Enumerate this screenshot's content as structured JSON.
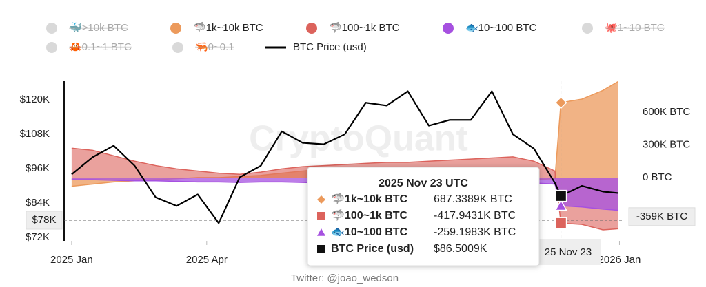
{
  "chart_data": {
    "type": "combo",
    "watermark": "CryptoQuant",
    "footer": "Twitter: @joao_wedson",
    "x": [
      "2025-01-01",
      "2025-01-15",
      "2025-01-29",
      "2025-02-12",
      "2025-02-26",
      "2025-03-12",
      "2025-03-26",
      "2025-04-09",
      "2025-04-23",
      "2025-05-07",
      "2025-05-21",
      "2025-06-04",
      "2025-06-18",
      "2025-07-02",
      "2025-07-16",
      "2025-07-30",
      "2025-08-13",
      "2025-08-27",
      "2025-09-10",
      "2025-09-24",
      "2025-10-08",
      "2025-10-22",
      "2025-11-05",
      "2025-11-19",
      "2025-11-23",
      "2025-12-07",
      "2025-12-21",
      "2025-12-31"
    ],
    "xlim": [
      "2024-12-27",
      "2026-01-04"
    ],
    "xticks": [
      {
        "value": "2025-01-01",
        "label": "2025 Jan"
      },
      {
        "value": "2025-04-01",
        "label": "2025 Apr"
      },
      {
        "value": "2026-01-01",
        "label": "2026 Jan"
      }
    ],
    "ylim": [
      70800,
      126500
    ],
    "yticks": [
      {
        "value": 72000,
        "label": "$72K"
      },
      {
        "value": 84000,
        "label": "$84K"
      },
      {
        "value": 96000,
        "label": "$96K"
      },
      {
        "value": 108000,
        "label": "$108K"
      },
      {
        "value": 120000,
        "label": "$120K"
      }
    ],
    "y2lim": [
      -581000,
      884000
    ],
    "y2ticks": [
      {
        "value": 0,
        "label": "0 BTC"
      },
      {
        "value": 300000,
        "label": "300K BTC"
      },
      {
        "value": 600000,
        "label": "600K BTC"
      }
    ],
    "series": [
      {
        "name": "🐳>10k BTC",
        "color": "#d9d9d9",
        "hidden": true
      },
      {
        "name": "🦈1k~10k BTC",
        "color": "#ec9a5c",
        "type": "area",
        "axis": "y2",
        "values": [
          -80000,
          -60000,
          -40000,
          -30000,
          -20000,
          -10000,
          0,
          0,
          10000,
          20000,
          40000,
          60000,
          80000,
          90000,
          60000,
          30000,
          20000,
          10000,
          0,
          -10000,
          -20000,
          -30000,
          -20000,
          -10000,
          687338.9,
          720000,
          800000,
          880000
        ],
        "value_labels": [
          null,
          null,
          null,
          null,
          null,
          null,
          null,
          null,
          null,
          null,
          null,
          null,
          null,
          null,
          null,
          null,
          null,
          null,
          null,
          null,
          null,
          null,
          null,
          null,
          "687.3389K BTC",
          null,
          null,
          null
        ]
      },
      {
        "name": "🦈100~1k BTC",
        "color": "#dc635c",
        "type": "area",
        "axis": "y2",
        "values": [
          270000,
          250000,
          200000,
          150000,
          110000,
          80000,
          60000,
          40000,
          30000,
          50000,
          80000,
          100000,
          110000,
          120000,
          130000,
          140000,
          140000,
          150000,
          160000,
          170000,
          180000,
          190000,
          150000,
          60000,
          -417943.1,
          -430000,
          -480000,
          -470000
        ],
        "value_labels": [
          null,
          null,
          null,
          null,
          null,
          null,
          null,
          null,
          null,
          null,
          null,
          null,
          null,
          null,
          null,
          null,
          null,
          null,
          null,
          null,
          null,
          null,
          null,
          null,
          "-417.9431K BTC",
          null,
          null,
          null
        ]
      },
      {
        "name": "🐟10~100 BTC",
        "color": "#a651e0",
        "type": "area",
        "axis": "y2",
        "values": [
          -20000,
          -20000,
          -25000,
          -30000,
          -30000,
          -35000,
          -40000,
          -40000,
          -45000,
          -40000,
          -40000,
          -45000,
          -50000,
          -50000,
          -55000,
          -55000,
          -60000,
          -60000,
          -60000,
          -60000,
          -55000,
          -50000,
          -50000,
          -60000,
          -259198.3,
          -270000,
          -290000,
          -300000
        ],
        "value_labels": [
          null,
          null,
          null,
          null,
          null,
          null,
          null,
          null,
          null,
          null,
          null,
          null,
          null,
          null,
          null,
          null,
          null,
          null,
          null,
          null,
          null,
          null,
          null,
          null,
          "-259.1983K BTC",
          null,
          null,
          null
        ]
      },
      {
        "name": "🐙1~10 BTC",
        "color": "#d9d9d9",
        "hidden": true
      },
      {
        "name": "🦀0.1~1 BTC",
        "color": "#d9d9d9",
        "hidden": true
      },
      {
        "name": "🦐0~0.1",
        "color": "#d9d9d9",
        "hidden": true
      },
      {
        "name": "BTC Price (usd)",
        "color": "#000000",
        "type": "line",
        "values": [
          94000,
          100000,
          104000,
          97000,
          86000,
          83000,
          87000,
          77000,
          93000,
          97000,
          109000,
          105000,
          104500,
          108000,
          119000,
          118000,
          123000,
          111000,
          113000,
          113000,
          123000,
          108000,
          103000,
          91000,
          86500.9,
          90000,
          88000,
          87500
        ],
        "value_labels": [
          null,
          null,
          null,
          null,
          null,
          null,
          null,
          null,
          null,
          null,
          null,
          null,
          null,
          null,
          null,
          null,
          null,
          null,
          null,
          null,
          null,
          null,
          null,
          null,
          "$86.5009K",
          null,
          null,
          null
        ]
      }
    ],
    "tooltip": {
      "title": "2025 Nov 23 UTC"
    },
    "crosshair": {
      "x_label": "25 Nov 23",
      "y": {
        "value": 78000,
        "label": "$78K"
      },
      "y2": {
        "value": -359000,
        "label": "-359K BTC"
      }
    }
  }
}
